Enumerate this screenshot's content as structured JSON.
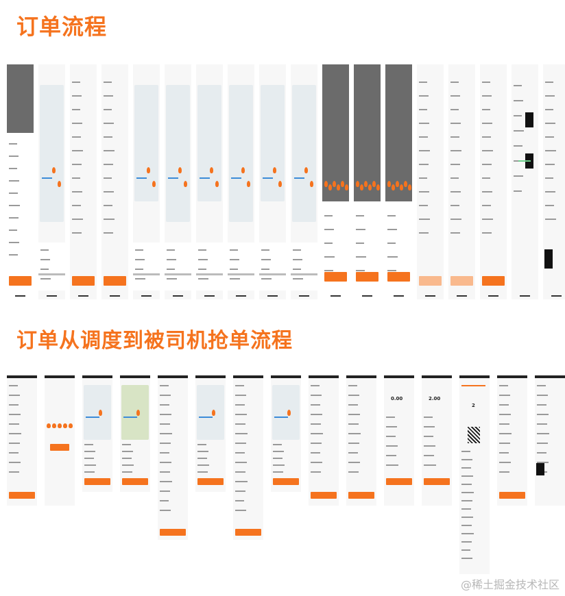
{
  "sections": {
    "order_flow_title": "订单流程",
    "dispatch_flow_title": "订单从调度到被司机抢单流程"
  },
  "row1": {
    "screens": [
      {
        "kind": "dark-top"
      },
      {
        "kind": "map"
      },
      {
        "kind": "list"
      },
      {
        "kind": "list"
      },
      {
        "kind": "map"
      },
      {
        "kind": "map"
      },
      {
        "kind": "map"
      },
      {
        "kind": "map"
      },
      {
        "kind": "map"
      },
      {
        "kind": "map"
      },
      {
        "kind": "dark"
      },
      {
        "kind": "dark"
      },
      {
        "kind": "dark"
      },
      {
        "kind": "list-light"
      },
      {
        "kind": "list-light"
      },
      {
        "kind": "list"
      },
      {
        "kind": "black-blocks"
      },
      {
        "kind": "black-bottom"
      }
    ]
  },
  "row2": {
    "price_1": "0.00",
    "price_2": "2.00",
    "count": "2",
    "screens": [
      {
        "kind": "form"
      },
      {
        "kind": "avatars"
      },
      {
        "kind": "map"
      },
      {
        "kind": "city"
      },
      {
        "kind": "form-long"
      },
      {
        "kind": "map"
      },
      {
        "kind": "form-long"
      },
      {
        "kind": "map"
      },
      {
        "kind": "form"
      },
      {
        "kind": "form"
      },
      {
        "kind": "price"
      },
      {
        "kind": "price"
      },
      {
        "kind": "qr"
      },
      {
        "kind": "list"
      },
      {
        "kind": "black"
      }
    ]
  },
  "watermark": "@稀土掘金技术社区",
  "colors": {
    "accent": "#f5731e",
    "accent_light": "#f9b98d",
    "map": "#e6ecef"
  }
}
